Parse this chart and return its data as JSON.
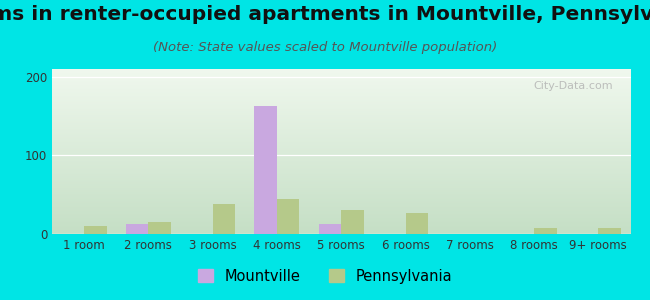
{
  "title": "Rooms in renter-occupied apartments in Mountville, Pennsylvania",
  "subtitle": "(Note: State values scaled to Mountville population)",
  "categories": [
    "1 room",
    "2 rooms",
    "3 rooms",
    "4 rooms",
    "5 rooms",
    "6 rooms",
    "7 rooms",
    "8 rooms",
    "9+ rooms"
  ],
  "mountville": [
    0,
    13,
    0,
    163,
    13,
    0,
    0,
    0,
    0
  ],
  "pennsylvania": [
    10,
    15,
    38,
    45,
    30,
    27,
    0,
    8,
    8
  ],
  "mountville_color": "#c9a8e0",
  "pennsylvania_color": "#b5c98a",
  "background_outer": "#00e5e5",
  "ylim": [
    0,
    210
  ],
  "yticks": [
    0,
    100,
    200
  ],
  "bar_width": 0.35,
  "title_fontsize": 14.5,
  "subtitle_fontsize": 9.5,
  "tick_fontsize": 8.5,
  "legend_fontsize": 10.5,
  "watermark": "City-Data.com"
}
